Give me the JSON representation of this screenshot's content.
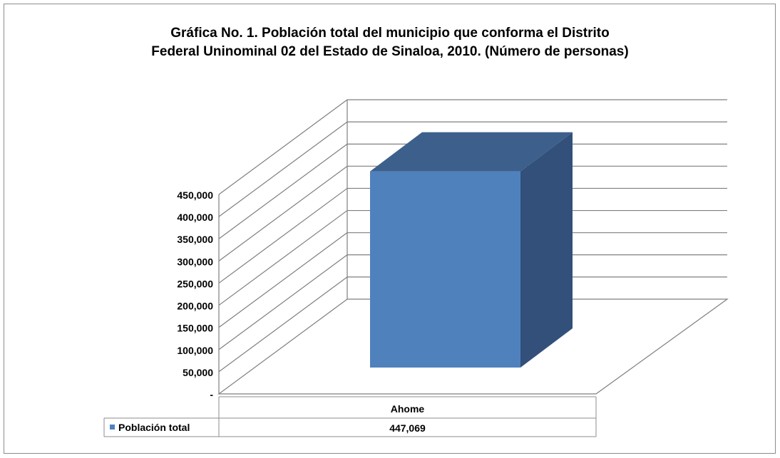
{
  "chart_data": {
    "type": "bar",
    "title_line1": "Gráfica No. 1. Población total del municipio que conforma el Distrito",
    "title_line2": "Federal Uninominal 02  del Estado de Sinaloa, 2010. (Número de personas)",
    "categories": [
      "Ahome"
    ],
    "series": [
      {
        "name": "Población total",
        "values": [
          447069
        ],
        "value_labels": [
          "447,069"
        ]
      }
    ],
    "ylim": [
      0,
      450000
    ],
    "y_ticks": [
      0,
      50000,
      100000,
      150000,
      200000,
      250000,
      300000,
      350000,
      400000,
      450000
    ],
    "y_tick_labels": [
      "-",
      "50,000",
      "100,000",
      "150,000",
      "200,000",
      "250,000",
      "300,000",
      "350,000",
      "400,000",
      "450,000"
    ],
    "grid": true,
    "legend": "data-table",
    "colors": {
      "bar_front": "#4f81bd",
      "bar_top": "#3d5f8c",
      "bar_side": "#32507a",
      "grid": "#7f7f7f",
      "legend_key": "#4f81bd"
    }
  }
}
